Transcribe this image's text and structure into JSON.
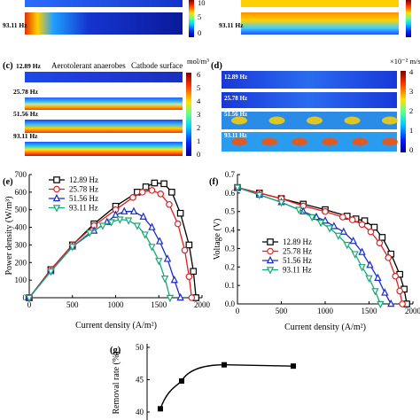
{
  "chart_data": [
    {
      "panel": "(c)",
      "type": "heatmap",
      "title": "Aerotolerant anaerobes",
      "annotation": "Cathode surface",
      "unit": "mol/m³",
      "frequencies": [
        "12.89 Hz",
        "25.78 Hz",
        "51.56 Hz",
        "93.11 Hz"
      ],
      "colorbar_ticks": [
        "6",
        "5",
        "4",
        "3",
        "2",
        "1",
        "0"
      ]
    },
    {
      "panel": "(d)",
      "type": "heatmap",
      "unit": "×10⁻² m/s",
      "frequencies": [
        "12.89 Hz",
        "25.78 Hz",
        "51.56 Hz",
        "93.11 Hz"
      ],
      "colorbar_ticks": [
        "4",
        "3",
        "2",
        "1",
        "0"
      ]
    },
    {
      "panel": "(e)",
      "type": "line",
      "xlabel": "Current density (A/m²)",
      "ylabel": "Power density (W/m³)",
      "xlim": [
        0,
        2000
      ],
      "ylim": [
        0,
        700
      ],
      "xticks": [
        "0",
        "500",
        "1000",
        "1500",
        "2000"
      ],
      "yticks": [
        "0",
        "100",
        "200",
        "300",
        "400",
        "500",
        "600",
        "700"
      ],
      "legend_position": "top-left",
      "series": [
        {
          "name": "12.89 Hz",
          "color": "#000000",
          "marker": "square",
          "x": [
            0,
            250,
            500,
            750,
            1000,
            1250,
            1350,
            1450,
            1560,
            1650,
            1750,
            1850,
            1900,
            1930
          ],
          "y": [
            0,
            160,
            300,
            420,
            520,
            600,
            630,
            652,
            648,
            600,
            480,
            300,
            150,
            0
          ]
        },
        {
          "name": "25.78 Hz",
          "color": "#e02020",
          "marker": "circle",
          "x": [
            0,
            250,
            500,
            750,
            1000,
            1200,
            1310,
            1420,
            1520,
            1620,
            1720,
            1800,
            1850,
            1880
          ],
          "y": [
            0,
            160,
            300,
            410,
            500,
            570,
            600,
            610,
            590,
            530,
            420,
            270,
            120,
            0
          ]
        },
        {
          "name": "51.56 Hz",
          "color": "#1a2ad0",
          "marker": "triangle-up",
          "x": [
            0,
            250,
            500,
            750,
            900,
            1000,
            1100,
            1210,
            1320,
            1420,
            1510,
            1600,
            1680,
            1750
          ],
          "y": [
            0,
            150,
            290,
            380,
            430,
            470,
            490,
            490,
            460,
            400,
            320,
            220,
            100,
            0
          ]
        },
        {
          "name": "93.11 Hz",
          "color": "#17a877",
          "marker": "triangle-down",
          "x": [
            0,
            250,
            500,
            700,
            850,
            950,
            1050,
            1150,
            1250,
            1340,
            1420,
            1500,
            1570,
            1630
          ],
          "y": [
            0,
            150,
            290,
            370,
            410,
            430,
            445,
            440,
            410,
            360,
            290,
            210,
            110,
            0
          ]
        }
      ]
    },
    {
      "panel": "(f)",
      "type": "line",
      "xlabel": "Current density (A/m²)",
      "ylabel": "Voltage (V)",
      "xlim": [
        0,
        2000
      ],
      "ylim": [
        0,
        0.7
      ],
      "xticks": [
        "0",
        "500",
        "1000",
        "1500",
        "2000"
      ],
      "yticks": [
        "0.0",
        "0.1",
        "0.2",
        "0.3",
        "0.4",
        "0.5",
        "0.6",
        "0.7"
      ],
      "legend_position": "center-left",
      "series": [
        {
          "name": "12.89 Hz",
          "color": "#000000",
          "marker": "square",
          "x": [
            0,
            250,
            500,
            750,
            1000,
            1250,
            1350,
            1450,
            1560,
            1650,
            1750,
            1850,
            1900,
            1930
          ],
          "y": [
            0.63,
            0.6,
            0.57,
            0.54,
            0.51,
            0.475,
            0.46,
            0.45,
            0.415,
            0.36,
            0.27,
            0.16,
            0.08,
            0.0
          ]
        },
        {
          "name": "25.78 Hz",
          "color": "#e02020",
          "marker": "circle",
          "x": [
            0,
            250,
            500,
            750,
            1000,
            1200,
            1310,
            1420,
            1520,
            1620,
            1720,
            1800,
            1850,
            1880
          ],
          "y": [
            0.63,
            0.6,
            0.57,
            0.53,
            0.5,
            0.47,
            0.455,
            0.43,
            0.39,
            0.33,
            0.25,
            0.15,
            0.07,
            0.0
          ]
        },
        {
          "name": "51.56 Hz",
          "color": "#1a2ad0",
          "marker": "triangle-up",
          "x": [
            0,
            250,
            500,
            750,
            900,
            1000,
            1100,
            1210,
            1320,
            1420,
            1510,
            1600,
            1680,
            1750
          ],
          "y": [
            0.63,
            0.59,
            0.55,
            0.5,
            0.47,
            0.45,
            0.42,
            0.39,
            0.34,
            0.28,
            0.21,
            0.14,
            0.06,
            0.0
          ]
        },
        {
          "name": "93.11 Hz",
          "color": "#17a877",
          "marker": "triangle-down",
          "x": [
            0,
            250,
            500,
            700,
            850,
            950,
            1050,
            1150,
            1250,
            1340,
            1420,
            1500,
            1570,
            1630
          ],
          "y": [
            0.63,
            0.59,
            0.55,
            0.51,
            0.47,
            0.44,
            0.41,
            0.37,
            0.32,
            0.27,
            0.2,
            0.14,
            0.07,
            0.0
          ]
        }
      ]
    },
    {
      "panel": "(g)",
      "type": "line",
      "ylabel": "Removal rate (%)",
      "ylim": [
        40,
        50
      ],
      "yticks": [
        "50",
        "45",
        "40"
      ],
      "series": [
        {
          "name": "",
          "color": "#000000",
          "marker": "square",
          "x": [
            0,
            1,
            2,
            3
          ],
          "y": [
            40.5,
            44.8,
            47.3,
            47.1
          ]
        }
      ]
    }
  ],
  "top_row": {
    "left_colorbar_ticks": [
      "10",
      "5",
      "0"
    ],
    "left_freq_label": "93.11 Hz",
    "right_freq_label": "93.11 Hz"
  }
}
